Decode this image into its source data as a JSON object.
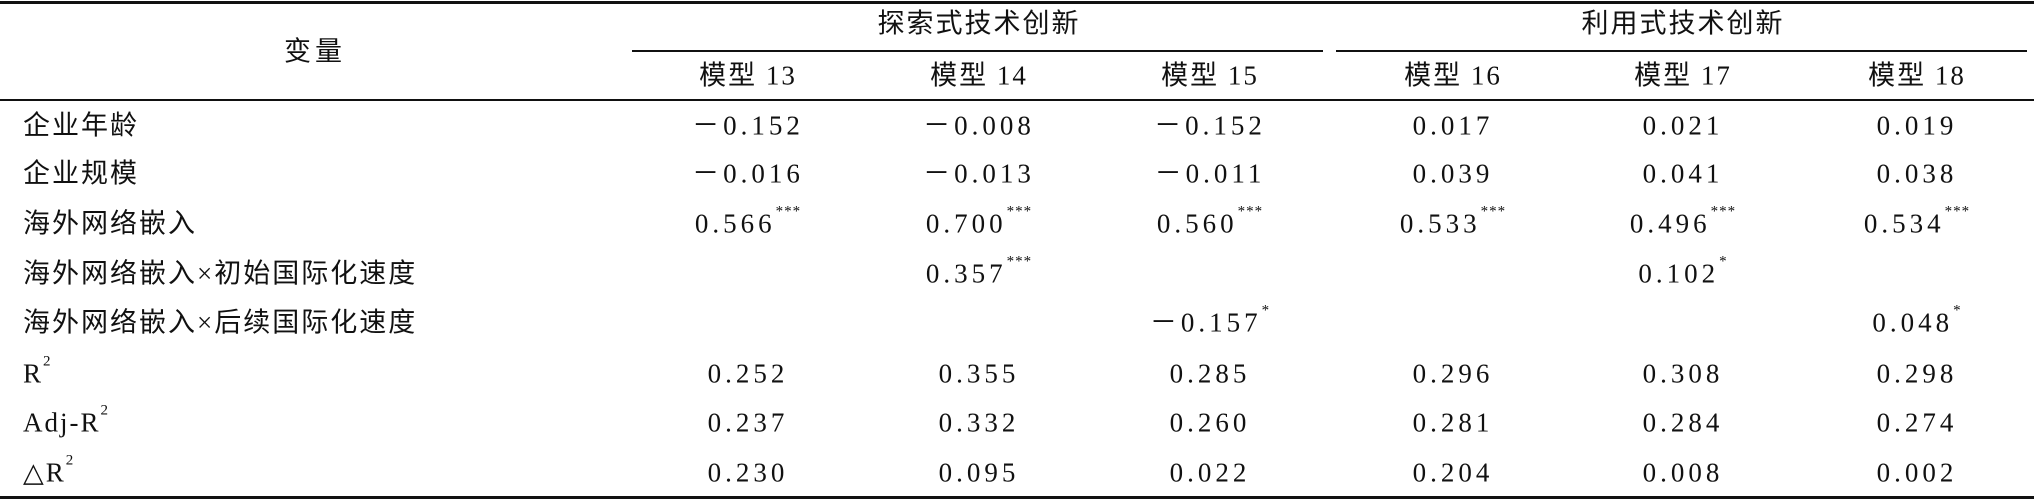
{
  "header": {
    "variable": "变量",
    "groups": [
      {
        "title": "探索式技术创新",
        "models": [
          "模型 13",
          "模型 14",
          "模型 15"
        ]
      },
      {
        "title": "利用式技术创新",
        "models": [
          "模型 16",
          "模型 17",
          "模型 18"
        ]
      }
    ]
  },
  "rows": [
    {
      "label": "企业年龄",
      "cells": [
        {
          "text": "－0.152"
        },
        {
          "text": "－0.008"
        },
        {
          "text": "－0.152"
        },
        {
          "text": "0.017"
        },
        {
          "text": "0.021"
        },
        {
          "text": "0.019"
        }
      ]
    },
    {
      "label": "企业规模",
      "cells": [
        {
          "text": "－0.016"
        },
        {
          "text": "－0.013"
        },
        {
          "text": "－0.011"
        },
        {
          "text": "0.039"
        },
        {
          "text": "0.041"
        },
        {
          "text": "0.038"
        }
      ]
    },
    {
      "label": "海外网络嵌入",
      "cells": [
        {
          "text": "0.566",
          "sup": "***"
        },
        {
          "text": "0.700",
          "sup": "***"
        },
        {
          "text": "0.560",
          "sup": "***"
        },
        {
          "text": "0.533",
          "sup": "***"
        },
        {
          "text": "0.496",
          "sup": "***"
        },
        {
          "text": "0.534",
          "sup": "***"
        }
      ]
    },
    {
      "label": "海外网络嵌入×初始国际化速度",
      "cells": [
        null,
        {
          "text": "0.357",
          "sup": "***"
        },
        null,
        null,
        {
          "text": "0.102",
          "sup": "*"
        },
        null
      ]
    },
    {
      "label": "海外网络嵌入×后续国际化速度",
      "cells": [
        null,
        null,
        {
          "text": "－0.157",
          "sup": "*"
        },
        null,
        null,
        {
          "text": "0.048",
          "sup": "*"
        }
      ]
    },
    {
      "label": "R",
      "label_sup": "2",
      "cells": [
        {
          "text": "0.252"
        },
        {
          "text": "0.355"
        },
        {
          "text": "0.285"
        },
        {
          "text": "0.296"
        },
        {
          "text": "0.308"
        },
        {
          "text": "0.298"
        }
      ]
    },
    {
      "label": "Adj-R",
      "label_sup": "2",
      "cells": [
        {
          "text": "0.237"
        },
        {
          "text": "0.332"
        },
        {
          "text": "0.260"
        },
        {
          "text": "0.281"
        },
        {
          "text": "0.284"
        },
        {
          "text": "0.274"
        }
      ]
    },
    {
      "label": "△R",
      "label_sup": "2",
      "cells": [
        {
          "text": "0.230"
        },
        {
          "text": "0.095"
        },
        {
          "text": "0.022"
        },
        {
          "text": "0.204"
        },
        {
          "text": "0.008"
        },
        {
          "text": "0.002"
        }
      ]
    }
  ]
}
